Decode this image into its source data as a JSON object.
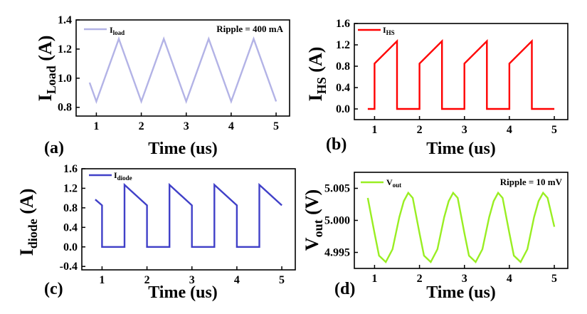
{
  "chart_data": [
    {
      "id": "a",
      "type": "line",
      "panel_label": "(a)",
      "xlabel": "Time (us)",
      "ylabel_main": "I",
      "ylabel_sub": "Load",
      "ylabel_unit": " (A)",
      "legend_main": "I",
      "legend_sub": "load",
      "annotation": "Ripple = 400 mA",
      "color": "#b3b3e6",
      "xlim": [
        0.55,
        5.3
      ],
      "ylim": [
        0.74,
        1.4
      ],
      "xticks": [
        "1",
        "2",
        "3",
        "4",
        "5"
      ],
      "yticks": [
        "0.8",
        "1.0",
        "1.2",
        "1.4"
      ],
      "series": [
        {
          "x": [
            0.85,
            1.0,
            1.5,
            2.0,
            2.5,
            3.0,
            3.5,
            4.0,
            4.5,
            5.0
          ],
          "y": [
            0.97,
            0.84,
            1.27,
            0.84,
            1.27,
            0.84,
            1.27,
            0.84,
            1.27,
            0.84
          ]
        }
      ]
    },
    {
      "id": "b",
      "type": "line",
      "panel_label": "(b)",
      "xlabel": "Time (us)",
      "ylabel_main": "I",
      "ylabel_sub": "HS",
      "ylabel_unit": " (A)",
      "legend_main": "I",
      "legend_sub": "HS",
      "annotation": "",
      "color": "#ff0000",
      "xlim": [
        0.55,
        5.3
      ],
      "ylim": [
        -0.2,
        1.6
      ],
      "xticks": [
        "1",
        "2",
        "3",
        "4",
        "5"
      ],
      "yticks": [
        "0.0",
        "0.4",
        "0.8",
        "1.2",
        "1.6"
      ],
      "series": [
        {
          "x": [
            0.85,
            1.0,
            1.0,
            1.5,
            1.5,
            2.0,
            2.0,
            2.5,
            2.5,
            3.0,
            3.0,
            3.5,
            3.5,
            4.0,
            4.0,
            4.5,
            4.5,
            5.0
          ],
          "y": [
            0.0,
            0.0,
            0.85,
            1.27,
            0.0,
            0.0,
            0.85,
            1.27,
            0.0,
            0.0,
            0.85,
            1.27,
            0.0,
            0.0,
            0.85,
            1.27,
            0.0,
            0.0
          ]
        }
      ]
    },
    {
      "id": "c",
      "type": "line",
      "panel_label": "(c)",
      "xlabel": "Time (us)",
      "ylabel_main": "I",
      "ylabel_sub": "diode",
      "ylabel_unit": " (A)",
      "legend_main": "I",
      "legend_sub": "diode",
      "annotation": "",
      "color": "#4040c8",
      "xlim": [
        0.55,
        5.3
      ],
      "ylim": [
        -0.47,
        1.6
      ],
      "xticks": [
        "1",
        "2",
        "3",
        "4",
        "5"
      ],
      "yticks": [
        "-0.4",
        "0.0",
        "0.4",
        "0.8",
        "1.2",
        "1.6"
      ],
      "series": [
        {
          "x": [
            0.85,
            1.0,
            1.0,
            1.5,
            1.5,
            2.0,
            2.0,
            2.5,
            2.5,
            3.0,
            3.0,
            3.5,
            3.5,
            4.0,
            4.0,
            4.5,
            4.5,
            5.0
          ],
          "y": [
            0.97,
            0.85,
            0.0,
            0.0,
            1.27,
            0.85,
            0.0,
            0.0,
            1.27,
            0.85,
            0.0,
            0.0,
            1.27,
            0.85,
            0.0,
            0.0,
            1.27,
            0.85
          ]
        }
      ]
    },
    {
      "id": "d",
      "type": "line",
      "panel_label": "(d)",
      "xlabel": "Time (us)",
      "ylabel_main": "V",
      "ylabel_sub": "out",
      "ylabel_unit": " (V)",
      "legend_main": "V",
      "legend_sub": "out",
      "annotation": "Ripple = 10 mV",
      "color": "#99ee22",
      "xlim": [
        0.55,
        5.3
      ],
      "ylim": [
        4.9925,
        5.0075
      ],
      "xticks": [
        "1",
        "2",
        "3",
        "4",
        "5"
      ],
      "yticks": [
        "4.995",
        "5.000",
        "5.005"
      ],
      "series": [
        {
          "x": [
            0.85,
            1.0,
            1.1,
            1.25,
            1.4,
            1.55,
            1.65,
            1.75,
            1.85,
            2.0,
            2.1,
            2.25,
            2.4,
            2.55,
            2.65,
            2.75,
            2.85,
            3.0,
            3.1,
            3.25,
            3.4,
            3.55,
            3.65,
            3.75,
            3.85,
            4.0,
            4.1,
            4.25,
            4.4,
            4.55,
            4.65,
            4.75,
            4.85,
            5.0
          ],
          "y": [
            5.0035,
            4.998,
            4.9945,
            4.9935,
            4.9955,
            5.0005,
            5.003,
            5.0043,
            5.0035,
            4.998,
            4.9945,
            4.9935,
            4.9955,
            5.0005,
            5.003,
            5.0043,
            5.0035,
            4.998,
            4.9945,
            4.9935,
            4.9955,
            5.0005,
            5.003,
            5.0043,
            5.0035,
            4.998,
            4.9945,
            4.9935,
            4.9955,
            5.0005,
            5.003,
            5.0043,
            5.0035,
            4.999
          ]
        }
      ]
    }
  ]
}
